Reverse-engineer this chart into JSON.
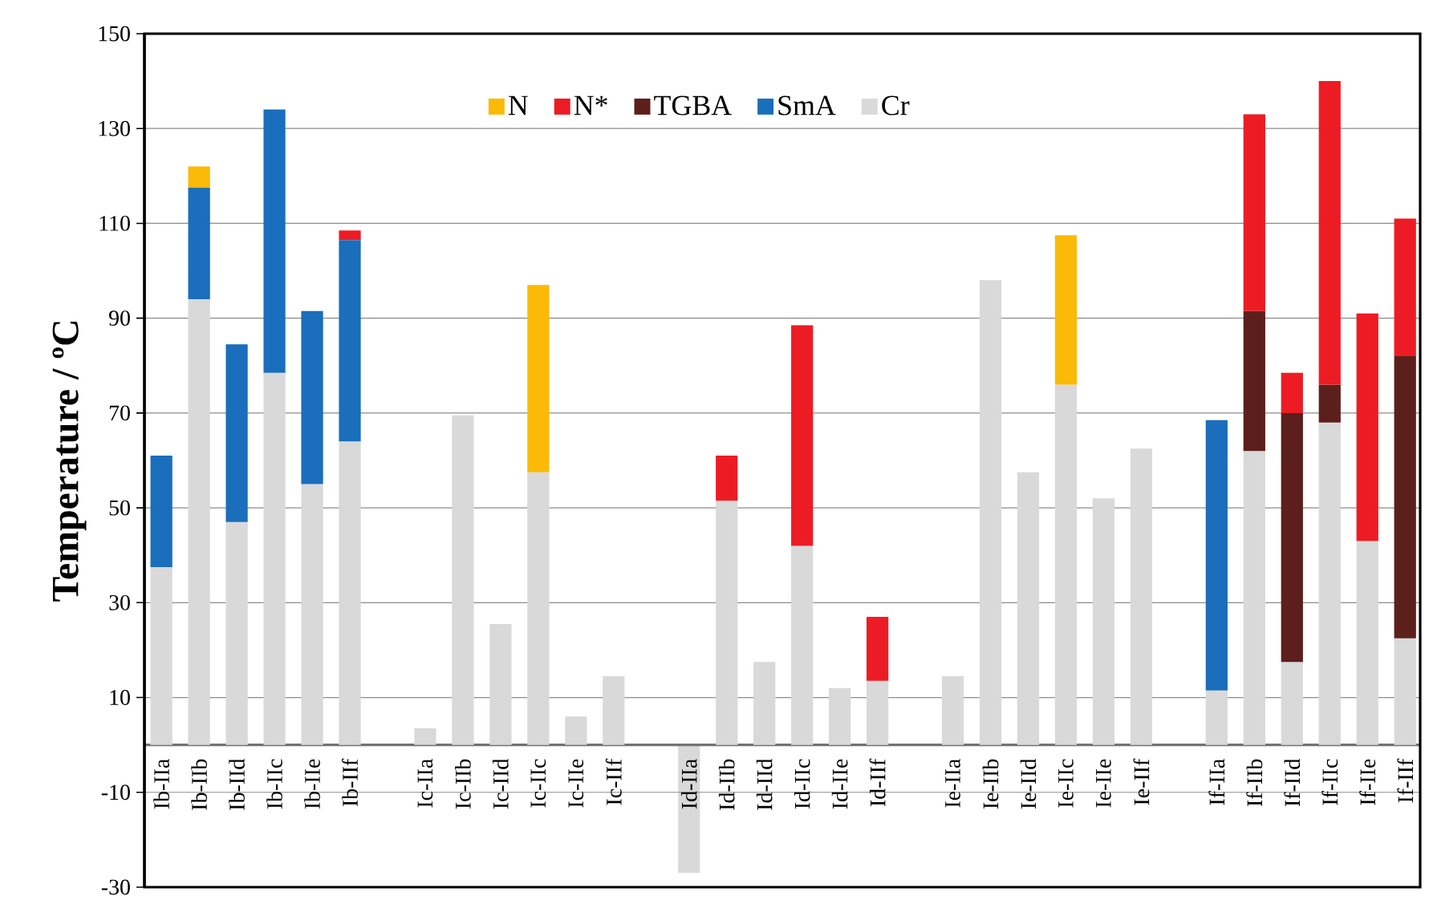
{
  "chart_data": {
    "type": "bar",
    "stacked": true,
    "ylabel": "Temperature / ºC",
    "categories": [
      "Ib-IIa",
      "Ib-IIb",
      "Ib-IId",
      "Ib-IIc",
      "Ib-IIe",
      "Ib-IIf",
      null,
      "Ic-IIa",
      "Ic-IIb",
      "Ic-IId",
      "Ic-IIc",
      "Ic-IIe",
      "Ic-IIf",
      null,
      "Id-IIa",
      "Id-IIb",
      "Id-IId",
      "Id-IIc",
      "Id-IIe",
      "Id-IIf",
      null,
      "Ie-IIa",
      "Ie-IIb",
      "Ie-IId",
      "Ie-IIc",
      "Ie-IIe",
      "Ie-IIf",
      null,
      "If-IIa",
      "If-IIb",
      "If-IId",
      "If-IIc",
      "If-IIe",
      "If-IIf"
    ],
    "series": [
      {
        "name": "Cr",
        "color": "#d9d9d9",
        "values": [
          37.5,
          94,
          47,
          78.5,
          55,
          64,
          null,
          3.5,
          69.5,
          25.5,
          57.5,
          6,
          14.5,
          null,
          -27,
          51.5,
          17.5,
          42,
          12,
          13.5,
          null,
          14.5,
          98,
          57.5,
          76,
          52,
          62.5,
          null,
          11.5,
          62,
          17.5,
          68,
          43,
          22.5
        ]
      },
      {
        "name": "SmA",
        "color": "#1a6ebb",
        "values": [
          23.5,
          23.5,
          37.5,
          55.5,
          36.5,
          42.5,
          null,
          null,
          null,
          null,
          null,
          null,
          null,
          null,
          null,
          null,
          null,
          null,
          null,
          null,
          null,
          null,
          null,
          null,
          null,
          null,
          null,
          null,
          57,
          null,
          null,
          null,
          null,
          null
        ]
      },
      {
        "name": "TGBA",
        "color": "#5c1f1c",
        "values": [
          null,
          null,
          null,
          null,
          null,
          null,
          null,
          null,
          null,
          null,
          null,
          null,
          null,
          null,
          null,
          null,
          null,
          null,
          null,
          null,
          null,
          null,
          null,
          null,
          null,
          null,
          null,
          null,
          null,
          29.5,
          52.5,
          8,
          null,
          59.5
        ]
      },
      {
        "name": "N*",
        "color": "#ed1c24",
        "values": [
          null,
          null,
          null,
          null,
          null,
          2,
          null,
          null,
          null,
          null,
          null,
          null,
          null,
          null,
          null,
          9.5,
          null,
          46.5,
          null,
          13.5,
          null,
          null,
          null,
          null,
          null,
          null,
          null,
          null,
          null,
          41.5,
          8.5,
          64,
          48,
          29
        ]
      },
      {
        "name": "N",
        "color": "#fbb908",
        "values": [
          null,
          4.5,
          null,
          null,
          null,
          null,
          null,
          null,
          null,
          null,
          39.5,
          null,
          null,
          null,
          null,
          null,
          null,
          null,
          null,
          null,
          null,
          null,
          null,
          null,
          31.5,
          null,
          null,
          null,
          null,
          null,
          null,
          null,
          null,
          null
        ]
      }
    ],
    "ylim": [
      -30,
      150
    ],
    "yticks": [
      -30,
      -10,
      10,
      30,
      50,
      70,
      90,
      110,
      130,
      150
    ],
    "grid": "y",
    "legend": "top"
  }
}
